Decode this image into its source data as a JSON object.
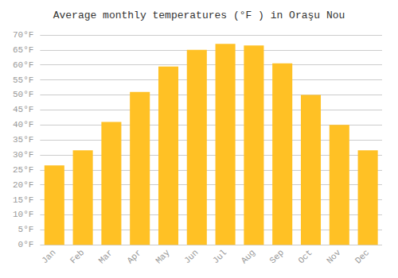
{
  "chart_data": {
    "type": "bar",
    "title": "Average monthly temperatures (°F ) in Oraşu Nou",
    "categories": [
      "Jan",
      "Feb",
      "Mar",
      "Apr",
      "May",
      "Jun",
      "Jul",
      "Aug",
      "Sep",
      "Oct",
      "Nov",
      "Dec"
    ],
    "values": [
      26.5,
      31.5,
      41.0,
      51.0,
      59.5,
      65.0,
      67.0,
      66.5,
      60.5,
      50.0,
      40.0,
      31.5
    ],
    "color": "#FFC125",
    "ylim": [
      0,
      70
    ],
    "yticks": [
      {
        "value": 0,
        "label": "0°F"
      },
      {
        "value": 5,
        "label": "5°F"
      },
      {
        "value": 10,
        "label": "10°F"
      },
      {
        "value": 15,
        "label": "15°F"
      },
      {
        "value": 20,
        "label": "20°F"
      },
      {
        "value": 25,
        "label": "25°F"
      },
      {
        "value": 30,
        "label": "30°F"
      },
      {
        "value": 35,
        "label": "35°F"
      },
      {
        "value": 40,
        "label": "40°F"
      },
      {
        "value": 45,
        "label": "45°F"
      },
      {
        "value": 50,
        "label": "50°F"
      },
      {
        "value": 55,
        "label": "55°F"
      },
      {
        "value": 60,
        "label": "60°F"
      },
      {
        "value": 65,
        "label": "65°F"
      },
      {
        "value": 70,
        "label": "70°F"
      }
    ],
    "grid": true
  }
}
